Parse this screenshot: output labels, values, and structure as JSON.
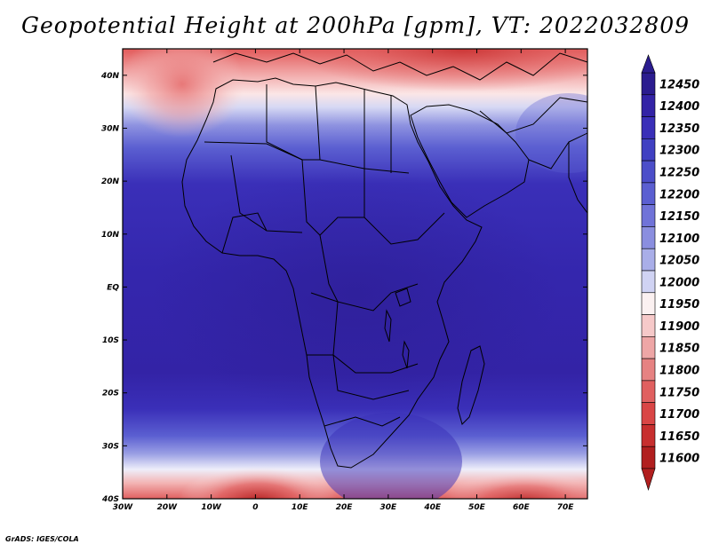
{
  "title": "Geopotential Height at 200hPa [gpm], VT: 2022032809",
  "credit": "GrADS: IGES/COLA",
  "map": {
    "lon_ticks": [
      "30W",
      "20W",
      "10W",
      "0",
      "10E",
      "20E",
      "30E",
      "40E",
      "50E",
      "60E",
      "70E"
    ],
    "lat_ticks": [
      "40N",
      "30N",
      "20N",
      "10N",
      "EQ",
      "10S",
      "20S",
      "30S",
      "40S"
    ],
    "lon_range": [
      -30,
      75
    ],
    "lat_range": [
      -40,
      45
    ]
  },
  "colorbar": {
    "levels": [
      12450,
      12400,
      12350,
      12300,
      12250,
      12200,
      12150,
      12100,
      12050,
      12000,
      11950,
      11900,
      11850,
      11800,
      11750,
      11700,
      11650,
      11600
    ],
    "level_labels": [
      "12450",
      "12400",
      "12350",
      "12300",
      "12250",
      "12200",
      "12150",
      "12100",
      "12050",
      "12000",
      "11950",
      "11900",
      "11850",
      "11800",
      "11750",
      "11700",
      "11650",
      "11600"
    ],
    "colors": [
      "#2b1c8f",
      "#3323a6",
      "#3a2fb8",
      "#4040c2",
      "#4c4ec9",
      "#5b5fd1",
      "#7073d8",
      "#8a8edf",
      "#a9aee8",
      "#d0d3f3",
      "#fbf1f1",
      "#f6c9c9",
      "#eea6a6",
      "#e68282",
      "#e06060",
      "#d94646",
      "#c72f2f",
      "#b11f1f"
    ]
  }
}
